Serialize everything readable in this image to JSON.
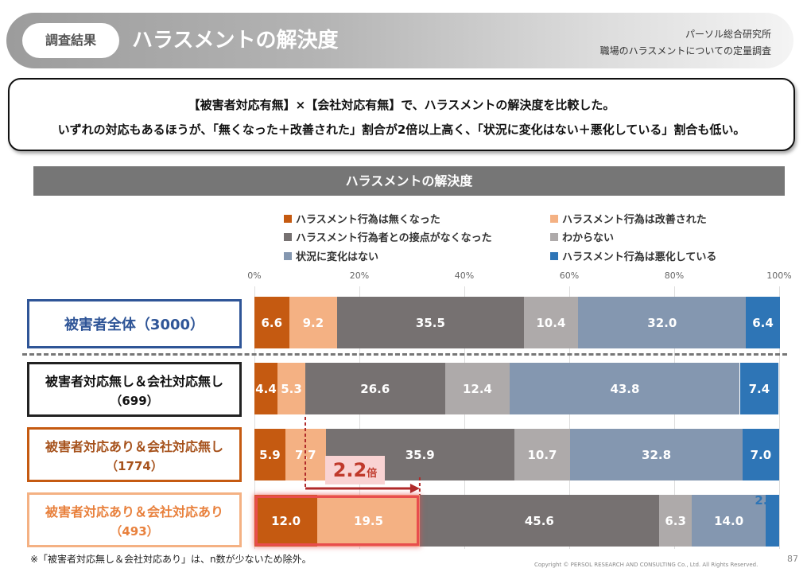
{
  "header": {
    "badge": "調査結果",
    "title": "ハラスメントの解決度",
    "source_org": "パーソル総合研究所",
    "source_survey": "職場のハラスメントについての定量調査"
  },
  "summary": {
    "line1": "【被害者対応有無】×【会社対応有無】で、ハラスメントの解決度を比較した。",
    "line2": "いずれの対応もあるほうが、「無くなった＋改善された」割合が2倍以上高く、「状況に変化はない＋悪化している」割合も低い。"
  },
  "callout": {
    "value": "2.2",
    "unit": "倍"
  },
  "footnote": "※「被害者対応無し＆会社対応あり」は、n数が少ないため除外。",
  "copyright": "Copyright © PERSOL RESEARCH AND CONSULTING Co., Ltd. All Rights Reserved.",
  "page_number": "87",
  "colors": {
    "nakunatta": "#c55a11",
    "kaizen": "#f4b183",
    "sesshoku": "#767171",
    "wakaranai": "#aeaaaa",
    "henka_nashi": "#8497b0",
    "akka": "#2e75b6",
    "border_total": "#2f5597",
    "border_none": "#222222",
    "border_victim": "#c55a11",
    "border_both": "#f4b183"
  },
  "chart_data": {
    "type": "bar",
    "orientation": "horizontal",
    "stacked": true,
    "title": "ハラスメントの解決度",
    "xlim": [
      0,
      100
    ],
    "ticks": [
      "0%",
      "20%",
      "40%",
      "60%",
      "80%",
      "100%"
    ],
    "series": [
      {
        "name": "ハラスメント行為は無くなった",
        "color": "#c55a11"
      },
      {
        "name": "ハラスメント行為は改善された",
        "color": "#f4b183"
      },
      {
        "name": "ハラスメント行為者との接点がなくなった",
        "color": "#767171"
      },
      {
        "name": "わからない",
        "color": "#aeaaaa"
      },
      {
        "name": "状況に変化はない",
        "color": "#8497b0"
      },
      {
        "name": "ハラスメント行為は悪化している",
        "color": "#2e75b6"
      }
    ],
    "rows": [
      {
        "label": "被害者全体（3000）",
        "label_main": "被害者全体（3000）",
        "label_n": "",
        "values": [
          6.6,
          9.2,
          35.5,
          10.4,
          32.0,
          6.4
        ]
      },
      {
        "label": "被害者対応無し＆会社対応無し",
        "label_main": "被害者対応無し＆会社対応無し",
        "label_n": "（699）",
        "values": [
          4.4,
          5.3,
          26.6,
          12.4,
          43.8,
          7.4
        ]
      },
      {
        "label": "被害者対応あり＆会社対応無し",
        "label_main": "被害者対応あり＆会社対応無し",
        "label_n": "（1774）",
        "values": [
          5.9,
          7.7,
          35.9,
          10.7,
          32.8,
          7.0
        ]
      },
      {
        "label": "被害者対応あり＆会社対応あり",
        "label_main": "被害者対応あり＆会社対応あり",
        "label_n": "（493）",
        "values": [
          12.0,
          19.5,
          45.6,
          6.3,
          14.0,
          2.6
        ]
      }
    ]
  }
}
